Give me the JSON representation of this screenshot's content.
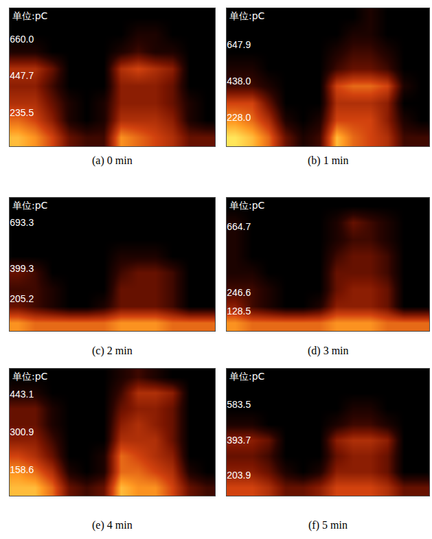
{
  "chart_data": [
    {
      "type": "heatmap",
      "title": "(a) 0 min",
      "ylabel": "单位:pC",
      "xlim": [
        0,
        360
      ],
      "ylim": [
        40,
        840
      ],
      "xticks": [
        90,
        180,
        270
      ],
      "yticks": [
        235.5,
        447.7,
        {
          "value": 660,
          "label": "660.0"
        }
      ],
      "grid": true,
      "tick_labels": "y",
      "zlim": [
        0,
        10
      ],
      "x": [
        15,
        45,
        75,
        105,
        135,
        165,
        195,
        225,
        255,
        285,
        315,
        345
      ],
      "y": [
        90,
        190,
        290,
        390,
        490,
        590,
        690,
        790
      ],
      "z": [
        [
          9,
          8,
          6,
          3,
          2,
          2,
          8,
          7,
          6,
          5,
          3,
          3
        ],
        [
          7,
          6,
          4,
          1,
          0,
          1,
          5,
          5,
          5,
          4,
          1,
          0
        ],
        [
          5,
          5,
          3,
          1,
          0,
          1,
          4,
          4,
          4,
          3,
          1,
          0
        ],
        [
          4,
          4,
          2,
          0,
          0,
          0,
          4,
          4,
          4,
          3,
          0,
          0
        ],
        [
          5,
          5,
          3,
          0,
          0,
          0,
          5,
          6,
          5,
          4,
          0,
          0
        ],
        [
          1,
          1,
          0,
          0,
          0,
          0,
          1,
          2,
          1,
          1,
          0,
          0
        ],
        [
          0,
          0,
          0,
          0,
          0,
          0,
          0,
          1,
          1,
          0,
          0,
          0
        ],
        [
          0,
          0,
          0,
          0,
          0,
          0,
          0,
          0,
          0,
          0,
          0,
          0
        ]
      ]
    },
    {
      "type": "heatmap",
      "title": "(b) 1 min",
      "ylabel": "单位:pC",
      "xlim": [
        0,
        360
      ],
      "ylim": [
        60,
        860
      ],
      "xticks": [
        90,
        180,
        270
      ],
      "yticks": [
        {
          "value": 228,
          "label": "228.0"
        },
        {
          "value": 438,
          "label": "438.0"
        },
        647.9
      ],
      "grid": true,
      "tick_labels": "y",
      "zlim": [
        0,
        10
      ],
      "x": [
        15,
        45,
        75,
        105,
        135,
        165,
        195,
        225,
        255,
        285,
        315,
        345
      ],
      "y": [
        110,
        210,
        310,
        410,
        510,
        610,
        710,
        810
      ],
      "z": [
        [
          10,
          9,
          7,
          3,
          1,
          2,
          9,
          7,
          6,
          5,
          2,
          2
        ],
        [
          8,
          7,
          5,
          1,
          0,
          1,
          6,
          6,
          6,
          4,
          1,
          0
        ],
        [
          6,
          6,
          3,
          0,
          0,
          0,
          5,
          5,
          5,
          4,
          0,
          0
        ],
        [
          2,
          2,
          1,
          0,
          0,
          0,
          6,
          7,
          7,
          6,
          1,
          0
        ],
        [
          1,
          1,
          0,
          0,
          0,
          0,
          2,
          3,
          3,
          2,
          0,
          0
        ],
        [
          0,
          0,
          0,
          0,
          0,
          0,
          1,
          2,
          2,
          1,
          0,
          0
        ],
        [
          0,
          0,
          0,
          0,
          0,
          0,
          0,
          1,
          1,
          0,
          0,
          0
        ],
        [
          0,
          0,
          0,
          0,
          0,
          0,
          0,
          0,
          1,
          0,
          0,
          0
        ]
      ]
    },
    {
      "type": "heatmap",
      "title": "(c) 2 min",
      "ylabel": "单位:pC",
      "xlim": [
        0,
        360
      ],
      "ylim": [
        0,
        850
      ],
      "xticks": [
        90,
        180,
        270
      ],
      "yticks": [
        205.2,
        399.3,
        693.3
      ],
      "grid": true,
      "tick_labels": "y",
      "zlim": [
        0,
        10
      ],
      "x": [
        15,
        45,
        75,
        105,
        135,
        165,
        195,
        225,
        255,
        285,
        315,
        345
      ],
      "y": [
        53,
        159,
        266,
        372,
        478,
        584,
        691,
        797
      ],
      "z": [
        [
          8,
          7,
          7,
          7,
          7,
          7,
          8,
          8,
          8,
          7,
          7,
          7
        ],
        [
          3,
          2,
          1,
          0,
          0,
          1,
          3,
          3,
          3,
          2,
          0,
          0
        ],
        [
          2,
          2,
          1,
          0,
          0,
          0,
          3,
          3,
          3,
          2,
          0,
          0
        ],
        [
          3,
          2,
          0,
          0,
          0,
          0,
          2,
          3,
          3,
          2,
          0,
          0
        ],
        [
          0,
          0,
          0,
          0,
          0,
          0,
          1,
          1,
          1,
          0,
          0,
          0
        ],
        [
          0,
          0,
          0,
          0,
          0,
          0,
          0,
          0,
          0,
          0,
          0,
          0
        ],
        [
          0,
          0,
          0,
          0,
          0,
          0,
          0,
          0,
          0,
          0,
          0,
          0
        ],
        [
          0,
          0,
          0,
          0,
          0,
          0,
          0,
          0,
          0,
          0,
          0,
          0
        ]
      ]
    },
    {
      "type": "heatmap",
      "title": "(d) 3 min",
      "ylabel": "单位:pC",
      "xlim": [
        0,
        360
      ],
      "ylim": [
        0,
        850
      ],
      "xticks": [
        90,
        180,
        270
      ],
      "yticks": [
        128.5,
        246.6,
        664.7
      ],
      "grid": true,
      "tick_labels": "y",
      "zlim": [
        0,
        10
      ],
      "x": [
        15,
        45,
        75,
        105,
        135,
        165,
        195,
        225,
        255,
        285,
        315,
        345
      ],
      "y": [
        53,
        159,
        266,
        372,
        478,
        584,
        691,
        797
      ],
      "z": [
        [
          8,
          7,
          7,
          7,
          7,
          7,
          8,
          8,
          8,
          7,
          7,
          7
        ],
        [
          4,
          2,
          1,
          0,
          0,
          1,
          4,
          4,
          4,
          3,
          0,
          0
        ],
        [
          2,
          2,
          1,
          0,
          0,
          0,
          3,
          4,
          4,
          3,
          0,
          0
        ],
        [
          1,
          1,
          0,
          0,
          0,
          0,
          3,
          3,
          3,
          2,
          0,
          0
        ],
        [
          1,
          0,
          0,
          0,
          0,
          0,
          2,
          3,
          3,
          2,
          0,
          0
        ],
        [
          1,
          0,
          0,
          0,
          0,
          0,
          1,
          2,
          2,
          1,
          0,
          0
        ],
        [
          1,
          0,
          0,
          0,
          0,
          0,
          1,
          3,
          2,
          1,
          0,
          0
        ],
        [
          0,
          0,
          0,
          0,
          0,
          0,
          0,
          0,
          0,
          0,
          0,
          0
        ]
      ]
    },
    {
      "type": "heatmap",
      "title": "(e) 4 min",
      "ylabel": "单位:pC",
      "xlim": [
        0,
        360
      ],
      "ylim": [
        60,
        540
      ],
      "xticks": [
        90,
        180,
        270
      ],
      "yticks": [
        158.6,
        300.9,
        443.1
      ],
      "grid": true,
      "tick_labels": "y",
      "zlim": [
        0,
        10
      ],
      "x": [
        15,
        45,
        75,
        105,
        135,
        165,
        195,
        225,
        255,
        285,
        315,
        345
      ],
      "y": [
        90,
        150,
        210,
        270,
        330,
        390,
        450,
        510
      ],
      "z": [
        [
          9,
          9,
          7,
          3,
          2,
          3,
          9,
          8,
          8,
          6,
          3,
          2
        ],
        [
          8,
          7,
          5,
          1,
          0,
          1,
          7,
          7,
          6,
          5,
          1,
          0
        ],
        [
          6,
          5,
          3,
          0,
          0,
          1,
          7,
          6,
          5,
          4,
          0,
          0
        ],
        [
          4,
          4,
          2,
          0,
          0,
          0,
          5,
          5,
          5,
          3,
          0,
          0
        ],
        [
          3,
          3,
          1,
          0,
          0,
          0,
          4,
          5,
          4,
          3,
          0,
          0
        ],
        [
          3,
          3,
          1,
          0,
          0,
          0,
          3,
          4,
          4,
          3,
          0,
          0
        ],
        [
          1,
          1,
          0,
          0,
          0,
          0,
          2,
          5,
          5,
          4,
          0,
          0
        ],
        [
          0,
          0,
          0,
          0,
          0,
          0,
          1,
          2,
          1,
          0,
          0,
          0
        ]
      ]
    },
    {
      "type": "heatmap",
      "title": "(f) 5 min",
      "ylabel": "单位:pC",
      "xlim": [
        0,
        360
      ],
      "ylim": [
        95,
        775
      ],
      "xticks": [
        90,
        180,
        270
      ],
      "yticks": [
        203.9,
        393.7,
        583.5
      ],
      "grid": true,
      "tick_labels": "y",
      "zlim": [
        0,
        10
      ],
      "x": [
        15,
        45,
        75,
        105,
        135,
        165,
        195,
        225,
        255,
        285,
        315,
        345
      ],
      "y": [
        137.5,
        222.5,
        307.5,
        392.5,
        477.5,
        562.5,
        647.5,
        732.5
      ],
      "z": [
        [
          6,
          6,
          5,
          3,
          3,
          4,
          6,
          6,
          6,
          5,
          3,
          3
        ],
        [
          4,
          4,
          3,
          1,
          0,
          1,
          4,
          4,
          4,
          3,
          0,
          0
        ],
        [
          3,
          3,
          2,
          0,
          0,
          0,
          3,
          4,
          4,
          3,
          0,
          0
        ],
        [
          4,
          4,
          3,
          0,
          0,
          0,
          4,
          5,
          5,
          4,
          0,
          0
        ],
        [
          1,
          1,
          0,
          0,
          0,
          0,
          1,
          2,
          2,
          1,
          0,
          0
        ],
        [
          0,
          0,
          0,
          0,
          0,
          0,
          0,
          1,
          1,
          0,
          0,
          0
        ],
        [
          0,
          0,
          0,
          0,
          0,
          0,
          0,
          0,
          0,
          0,
          0,
          0
        ],
        [
          0,
          0,
          0,
          0,
          0,
          0,
          0,
          0,
          0,
          0,
          0,
          0
        ]
      ]
    }
  ]
}
